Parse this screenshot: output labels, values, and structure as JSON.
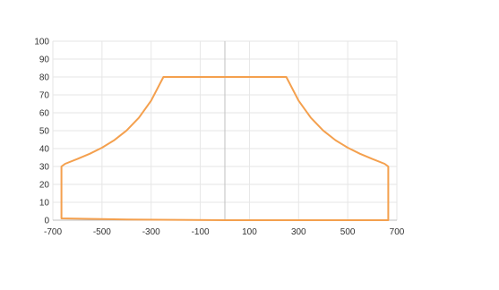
{
  "chart_data": {
    "type": "scatter",
    "mode": "lines",
    "title": "",
    "xlabel": "",
    "ylabel": "",
    "xlim": [
      -700,
      700
    ],
    "ylim": [
      0,
      100
    ],
    "x_ticks": [
      -700,
      -500,
      -300,
      -100,
      100,
      300,
      500,
      700
    ],
    "y_ticks": [
      0,
      10,
      20,
      30,
      40,
      50,
      60,
      70,
      80,
      90,
      100
    ],
    "grid": true,
    "legend": "none",
    "series": [
      {
        "color": "#F4A04E",
        "x": [
          -665,
          -650,
          -600,
          -550,
          -500,
          -450,
          -400,
          -350,
          -300,
          -250,
          250,
          300,
          350,
          400,
          450,
          500,
          550,
          600,
          650,
          665,
          665,
          400,
          0,
          -400,
          -665,
          -665
        ],
        "y": [
          30,
          31.5,
          34.2,
          37.1,
          40.5,
          44.7,
          50.1,
          57.2,
          66.8,
          80,
          80,
          66.8,
          57.2,
          50.1,
          44.7,
          40.5,
          37.1,
          34.2,
          31.5,
          30,
          0,
          0,
          0,
          0.4,
          1,
          30
        ]
      }
    ]
  }
}
